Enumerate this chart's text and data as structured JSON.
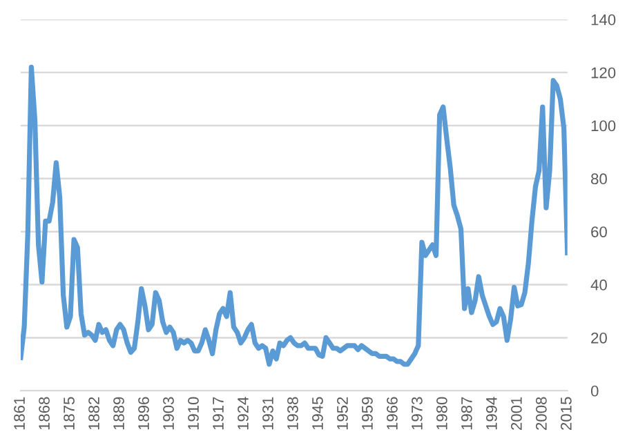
{
  "chart_data": {
    "type": "line",
    "x": [
      1861,
      1862,
      1863,
      1864,
      1865,
      1866,
      1867,
      1868,
      1869,
      1870,
      1871,
      1872,
      1873,
      1874,
      1875,
      1876,
      1877,
      1878,
      1879,
      1880,
      1881,
      1882,
      1883,
      1884,
      1885,
      1886,
      1887,
      1888,
      1889,
      1890,
      1891,
      1892,
      1893,
      1894,
      1895,
      1896,
      1897,
      1898,
      1899,
      1900,
      1901,
      1902,
      1903,
      1904,
      1905,
      1906,
      1907,
      1908,
      1909,
      1910,
      1911,
      1912,
      1913,
      1914,
      1915,
      1916,
      1917,
      1918,
      1919,
      1920,
      1921,
      1922,
      1923,
      1924,
      1925,
      1926,
      1927,
      1928,
      1929,
      1930,
      1931,
      1932,
      1933,
      1934,
      1935,
      1936,
      1937,
      1938,
      1939,
      1940,
      1941,
      1942,
      1943,
      1944,
      1945,
      1946,
      1947,
      1948,
      1949,
      1950,
      1951,
      1952,
      1953,
      1954,
      1955,
      1956,
      1957,
      1958,
      1959,
      1960,
      1961,
      1962,
      1963,
      1964,
      1965,
      1966,
      1967,
      1968,
      1969,
      1970,
      1971,
      1972,
      1973,
      1974,
      1975,
      1976,
      1977,
      1978,
      1979,
      1980,
      1981,
      1982,
      1983,
      1984,
      1985,
      1986,
      1987,
      1988,
      1989,
      1990,
      1991,
      1992,
      1993,
      1994,
      1995,
      1996,
      1997,
      1998,
      1999,
      2000,
      2001,
      2002,
      2003,
      2004,
      2005,
      2006,
      2007,
      2008,
      2009,
      2010,
      2011,
      2012,
      2013,
      2014,
      2015
    ],
    "series": [
      {
        "color": "#5b9bd5",
        "values": [
          12.5,
          24,
          59,
          122,
          102,
          55,
          41,
          64,
          64,
          71,
          86,
          73,
          36,
          24,
          28,
          57,
          54,
          29,
          21,
          22,
          21,
          19,
          25,
          22,
          23,
          19,
          17,
          23,
          25,
          23,
          18,
          14.5,
          16,
          26,
          38.5,
          32,
          23,
          25,
          37,
          34,
          26,
          22,
          24,
          22,
          16,
          19,
          18,
          19,
          18,
          15,
          15,
          18,
          23,
          19,
          14,
          23,
          29,
          31,
          28,
          37,
          24,
          22,
          18,
          20,
          23,
          25,
          18,
          16,
          17,
          16,
          10,
          15,
          12,
          18,
          17,
          19,
          20,
          18,
          17,
          17,
          18,
          16,
          16,
          16,
          13.5,
          13,
          20,
          18,
          16,
          16,
          15,
          16,
          17,
          17,
          17,
          15.5,
          17,
          16,
          15,
          14,
          14,
          13,
          13,
          13,
          12,
          12,
          11,
          11,
          10,
          10,
          12,
          14,
          17,
          56,
          51,
          53,
          55,
          51,
          104,
          107,
          95,
          84,
          70,
          66,
          61,
          31,
          38.5,
          29.5,
          34,
          43,
          36,
          32,
          28,
          25,
          26,
          31,
          28,
          19,
          27,
          39,
          32,
          32.5,
          37,
          48,
          64,
          77,
          83,
          107,
          69,
          83,
          117,
          115,
          110,
          99,
          52
        ]
      }
    ],
    "xlim": [
      1861,
      2015
    ],
    "xticks": [
      1861,
      1868,
      1875,
      1882,
      1889,
      1896,
      1903,
      1910,
      1917,
      1924,
      1931,
      1938,
      1945,
      1952,
      1959,
      1966,
      1973,
      1980,
      1987,
      1994,
      2001,
      2008,
      2015
    ],
    "ylim": [
      0,
      140
    ],
    "yticks": [
      0,
      20,
      40,
      60,
      80,
      100,
      120,
      140
    ],
    "grid": "y",
    "legend": false,
    "marker": "none",
    "line_style": "solid"
  }
}
